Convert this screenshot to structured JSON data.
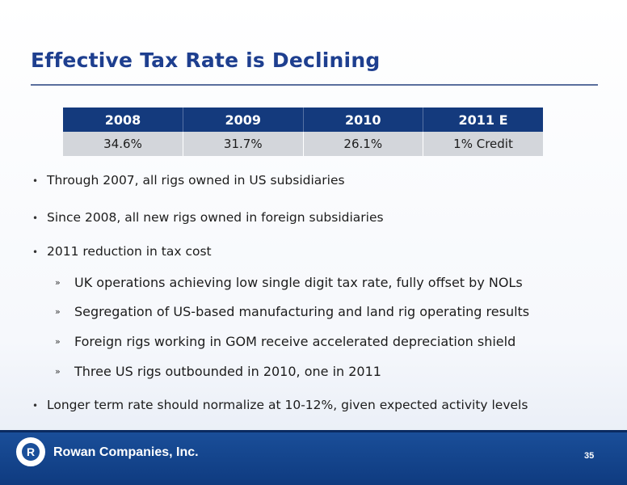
{
  "slide": {
    "title": "Effective Tax Rate is Declining"
  },
  "table": {
    "headers": [
      "2008",
      "2009",
      "2010",
      "2011 E"
    ],
    "values": [
      "34.6%",
      "31.7%",
      "26.1%",
      "1% Credit"
    ]
  },
  "bullets": [
    "Through 2007, all rigs owned in US subsidiaries",
    "Since 2008, all new rigs owned in foreign subsidiaries",
    "2011 reduction in tax cost",
    "Longer term rate should normalize at 10-12%, given expected activity levels"
  ],
  "sub_bullets": [
    "UK operations achieving low single digit tax rate, fully offset by NOLs",
    "Segregation of US-based manufacturing and land rig operating results",
    "Foreign rigs working in GOM receive accelerated depreciation shield",
    "Three US rigs outbounded in 2010, one in 2011"
  ],
  "footer": {
    "logo_letter": "R",
    "company": "Rowan Companies, Inc.",
    "page_number": "35"
  },
  "colors": {
    "title": "#1e3f8f",
    "header_bg": "#143a7d",
    "row_bg": "#d3d6db",
    "footer_bg": "#1a4f9a"
  }
}
